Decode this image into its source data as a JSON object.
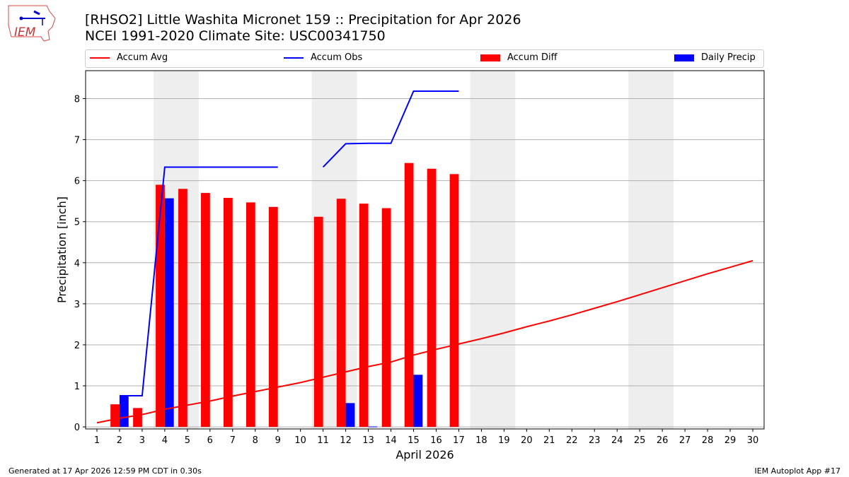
{
  "title_line1": "[RHSO2] Little Washita Micronet 159 :: Precipitation for Apr 2026",
  "title_line2": "NCEI 1991-2020 Climate Site: USC00341750",
  "footer_left": "Generated at 17 Apr 2026 12:59 PM CDT in 0.30s",
  "footer_right": "IEM Autoplot App #17",
  "logo_text": "IEM",
  "chart_data": {
    "type": "bar",
    "xlabel": "April 2026",
    "ylabel": "Precipitation [inch]",
    "xlim": [
      0.5,
      30.5
    ],
    "ylim": [
      -0.05,
      8.68
    ],
    "yticks": [
      0,
      1,
      2,
      3,
      4,
      5,
      6,
      7,
      8
    ],
    "xticks": [
      1,
      2,
      3,
      4,
      5,
      6,
      7,
      8,
      9,
      10,
      11,
      12,
      13,
      14,
      15,
      16,
      17,
      18,
      19,
      20,
      21,
      22,
      23,
      24,
      25,
      26,
      27,
      28,
      29,
      30
    ],
    "grid": "horizontal",
    "legend_placement": "top",
    "weekend_shading": [
      [
        4,
        5
      ],
      [
        11,
        12
      ],
      [
        18,
        19
      ],
      [
        25,
        26
      ]
    ],
    "colors": {
      "accum_avg": "#ff0000",
      "accum_obs": "#0000ff",
      "accum_diff": "#ff0000",
      "daily_precip": "#0000ff",
      "shade": "#eeeeee",
      "grid": "#b0b0b0"
    },
    "series": [
      {
        "name": "Accum Avg",
        "kind": "line",
        "x": [
          1,
          2,
          3,
          4,
          5,
          6,
          7,
          8,
          9,
          10,
          11,
          12,
          13,
          14,
          15,
          16,
          17,
          18,
          19,
          20,
          21,
          22,
          23,
          24,
          25,
          26,
          27,
          28,
          29,
          30
        ],
        "values": [
          0.1,
          0.21,
          0.3,
          0.43,
          0.53,
          0.63,
          0.75,
          0.86,
          0.97,
          1.08,
          1.21,
          1.34,
          1.47,
          1.58,
          1.75,
          1.89,
          2.02,
          2.15,
          2.29,
          2.44,
          2.58,
          2.73,
          2.89,
          3.05,
          3.22,
          3.39,
          3.56,
          3.73,
          3.89,
          4.05
        ]
      },
      {
        "name": "Accum Obs",
        "kind": "line",
        "x": [
          2,
          3,
          4,
          5,
          6,
          7,
          8,
          9,
          10,
          11,
          12,
          13,
          14,
          15,
          16,
          17
        ],
        "values": [
          0.76,
          0.76,
          6.33,
          6.33,
          6.33,
          6.33,
          6.33,
          6.33,
          null,
          6.33,
          6.9,
          6.91,
          6.91,
          8.18,
          8.18,
          8.18
        ]
      },
      {
        "name": "Accum Diff",
        "kind": "bar",
        "x": [
          2,
          3,
          4,
          5,
          6,
          7,
          8,
          9,
          11,
          12,
          13,
          14,
          15,
          16,
          17
        ],
        "values": [
          0.55,
          0.46,
          5.9,
          5.8,
          5.7,
          5.58,
          5.47,
          5.36,
          5.12,
          5.56,
          5.44,
          5.33,
          6.43,
          6.29,
          6.16
        ]
      },
      {
        "name": "Daily Precip",
        "kind": "bar",
        "x": [
          2,
          4,
          12,
          13,
          15
        ],
        "values": [
          0.76,
          5.57,
          0.58,
          0.01,
          1.27
        ]
      }
    ]
  }
}
